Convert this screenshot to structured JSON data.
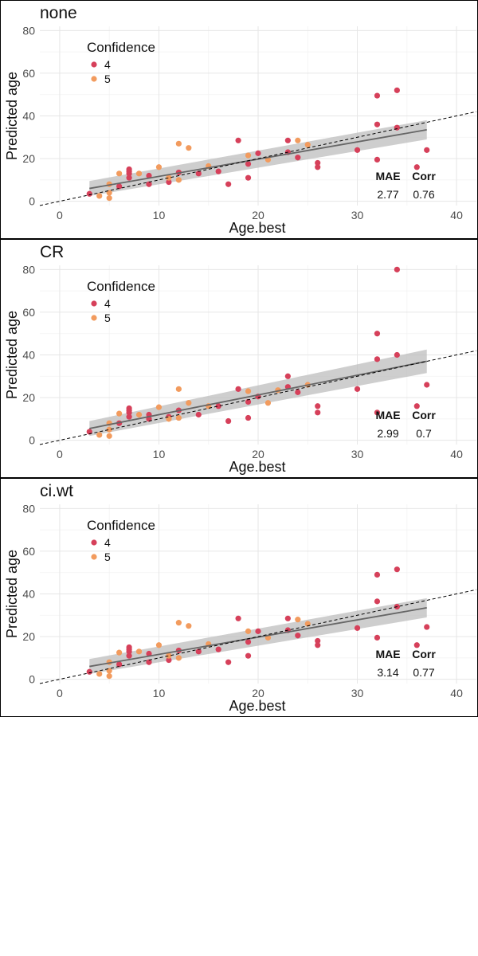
{
  "figure": {
    "x_label": "Age.best",
    "y_label": "Predicted age",
    "legend_title": "Confidence",
    "legend_items": [
      {
        "label": "4",
        "color": "#D6405A"
      },
      {
        "label": "5",
        "color": "#F29B5E"
      }
    ],
    "stat_headers": {
      "mae": "MAE",
      "corr": "Corr"
    },
    "x_ticks": [
      "0",
      "10",
      "20",
      "30",
      "40"
    ],
    "y_ticks": [
      "0",
      "20",
      "40",
      "60",
      "80"
    ]
  },
  "panels": [
    {
      "title": "none",
      "mae": "2.77",
      "corr": "0.76"
    },
    {
      "title": "CR",
      "mae": "2.99",
      "corr": "0.7"
    },
    {
      "title": "ci.wt",
      "mae": "3.14",
      "corr": "0.77"
    }
  ],
  "chart_data": [
    {
      "type": "scatter",
      "title": "none",
      "xlabel": "Age.best",
      "ylabel": "Predicted age",
      "xlim": [
        -2,
        42
      ],
      "ylim": [
        -2,
        82
      ],
      "grid": true,
      "legend_placement": "top-left",
      "reference_line": {
        "slope": 1,
        "intercept": 0,
        "style": "dashed"
      },
      "fit_line": {
        "x": [
          3,
          37
        ],
        "y": [
          6,
          33.5
        ],
        "band_low": [
          2.5,
          29
        ],
        "band_high": [
          9.5,
          38
        ]
      },
      "series": [
        {
          "name": "4",
          "color": "#D6405A",
          "points": [
            [
              3,
              3.5
            ],
            [
              6,
              7
            ],
            [
              7,
              11
            ],
            [
              7,
              13
            ],
            [
              7,
              14
            ],
            [
              7,
              15
            ],
            [
              9,
              8
            ],
            [
              9,
              12
            ],
            [
              11,
              9
            ],
            [
              12,
              13.5
            ],
            [
              14,
              13
            ],
            [
              16,
              14
            ],
            [
              17,
              8
            ],
            [
              18,
              28.5
            ],
            [
              19,
              11
            ],
            [
              19,
              17.5
            ],
            [
              20,
              22.5
            ],
            [
              23,
              23
            ],
            [
              23,
              28.5
            ],
            [
              24,
              20.5
            ],
            [
              26,
              16
            ],
            [
              26,
              18
            ],
            [
              30,
              24
            ],
            [
              32,
              19.5
            ],
            [
              32,
              36
            ],
            [
              32,
              49.5
            ],
            [
              34,
              34.5
            ],
            [
              34,
              52
            ],
            [
              36,
              16
            ],
            [
              37,
              24
            ]
          ]
        },
        {
          "name": "5",
          "color": "#F29B5E",
          "points": [
            [
              4,
              2.5
            ],
            [
              5,
              1.5
            ],
            [
              5,
              4
            ],
            [
              5,
              8
            ],
            [
              6,
              13
            ],
            [
              8,
              13
            ],
            [
              10,
              16
            ],
            [
              11,
              11
            ],
            [
              12,
              10
            ],
            [
              12,
              27
            ],
            [
              13,
              25
            ],
            [
              15,
              16.5
            ],
            [
              19,
              21.5
            ],
            [
              21,
              19.5
            ],
            [
              24,
              28.5
            ],
            [
              25,
              26.5
            ]
          ]
        }
      ]
    },
    {
      "type": "scatter",
      "title": "CR",
      "xlabel": "Age.best",
      "ylabel": "Predicted age",
      "xlim": [
        -2,
        42
      ],
      "ylim": [
        -2,
        82
      ],
      "grid": true,
      "legend_placement": "top-left",
      "reference_line": {
        "slope": 1,
        "intercept": 0,
        "style": "dashed"
      },
      "fit_line": {
        "x": [
          3,
          37
        ],
        "y": [
          5.5,
          37
        ],
        "band_low": [
          2,
          31.5
        ],
        "band_high": [
          9,
          42.5
        ]
      },
      "series": [
        {
          "name": "4",
          "color": "#D6405A",
          "points": [
            [
              3,
              4
            ],
            [
              6,
              8
            ],
            [
              7,
              11
            ],
            [
              7,
              13
            ],
            [
              7,
              14
            ],
            [
              7,
              15
            ],
            [
              9,
              10
            ],
            [
              9,
              12
            ],
            [
              11,
              11
            ],
            [
              12,
              14
            ],
            [
              14,
              12
            ],
            [
              16,
              16
            ],
            [
              17,
              9
            ],
            [
              18,
              24
            ],
            [
              19,
              10.5
            ],
            [
              19,
              18
            ],
            [
              20,
              20.5
            ],
            [
              23,
              25
            ],
            [
              23,
              30
            ],
            [
              24,
              22.5
            ],
            [
              26,
              13
            ],
            [
              26,
              16
            ],
            [
              30,
              24
            ],
            [
              32,
              13
            ],
            [
              32,
              38
            ],
            [
              32,
              50
            ],
            [
              34,
              40
            ],
            [
              34,
              80
            ],
            [
              36,
              16
            ],
            [
              37,
              26
            ]
          ]
        },
        {
          "name": "5",
          "color": "#F29B5E",
          "points": [
            [
              4,
              2.5
            ],
            [
              5,
              2
            ],
            [
              5,
              5
            ],
            [
              5,
              8
            ],
            [
              6,
              12.5
            ],
            [
              8,
              12
            ],
            [
              10,
              15.5
            ],
            [
              11,
              10
            ],
            [
              12,
              10.5
            ],
            [
              12,
              24
            ],
            [
              13,
              17.5
            ],
            [
              15,
              16
            ],
            [
              19,
              23
            ],
            [
              21,
              17.5
            ],
            [
              22,
              23.5
            ],
            [
              25,
              26
            ]
          ]
        }
      ]
    },
    {
      "type": "scatter",
      "title": "ci.wt",
      "xlabel": "Age.best",
      "ylabel": "Predicted age",
      "xlim": [
        -2,
        42
      ],
      "ylim": [
        -2,
        82
      ],
      "grid": true,
      "legend_placement": "top-left",
      "reference_line": {
        "slope": 1,
        "intercept": 0,
        "style": "dashed"
      },
      "fit_line": {
        "x": [
          3,
          37
        ],
        "y": [
          6,
          33.5
        ],
        "band_low": [
          2.5,
          29
        ],
        "band_high": [
          9.5,
          38
        ]
      },
      "series": [
        {
          "name": "4",
          "color": "#D6405A",
          "points": [
            [
              3,
              3.5
            ],
            [
              6,
              7
            ],
            [
              7,
              11
            ],
            [
              7,
              13
            ],
            [
              7,
              14
            ],
            [
              7,
              15
            ],
            [
              9,
              8
            ],
            [
              9,
              12
            ],
            [
              11,
              9
            ],
            [
              12,
              13.5
            ],
            [
              14,
              13
            ],
            [
              16,
              14
            ],
            [
              17,
              8
            ],
            [
              18,
              28.5
            ],
            [
              19,
              11
            ],
            [
              19,
              17.5
            ],
            [
              20,
              22.5
            ],
            [
              23,
              23
            ],
            [
              23,
              28.5
            ],
            [
              24,
              20.5
            ],
            [
              26,
              16
            ],
            [
              26,
              18
            ],
            [
              30,
              24
            ],
            [
              32,
              19.5
            ],
            [
              32,
              36.5
            ],
            [
              32,
              49
            ],
            [
              34,
              34
            ],
            [
              34,
              51.5
            ],
            [
              36,
              16
            ],
            [
              37,
              24.5
            ]
          ]
        },
        {
          "name": "5",
          "color": "#F29B5E",
          "points": [
            [
              4,
              2.5
            ],
            [
              5,
              1.5
            ],
            [
              5,
              4
            ],
            [
              5,
              8
            ],
            [
              6,
              12.5
            ],
            [
              8,
              13
            ],
            [
              10,
              16
            ],
            [
              11,
              11
            ],
            [
              12,
              10
            ],
            [
              12,
              26.5
            ],
            [
              13,
              25
            ],
            [
              15,
              16.5
            ],
            [
              19,
              22.5
            ],
            [
              21,
              19.5
            ],
            [
              24,
              28
            ],
            [
              25,
              26
            ]
          ]
        }
      ]
    }
  ]
}
